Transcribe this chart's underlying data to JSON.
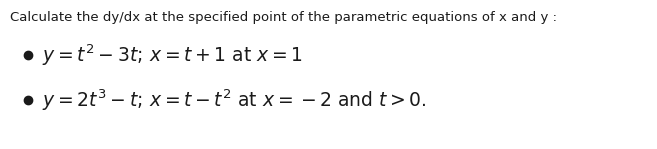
{
  "title": "Calculate the dy/dx at the specified point of the parametric equations of x and y :",
  "title_fontsize": 9.5,
  "title_color": "#1a1a1a",
  "background_color": "#ffffff",
  "bullet1_math": "$y = t^{2} - 3t;\\, x = t + 1$",
  "bullet1_plain": " at $x = 1$",
  "bullet2_math": "$y = 2t^{3} - t;\\, x = t - t^{2}$",
  "bullet2_plain": " at $x = -2$ and $t > 0.$",
  "bullet_fontsize": 13.5,
  "bullet_color": "#1a1a1a",
  "fig_width": 6.57,
  "fig_height": 1.49,
  "dpi": 100
}
